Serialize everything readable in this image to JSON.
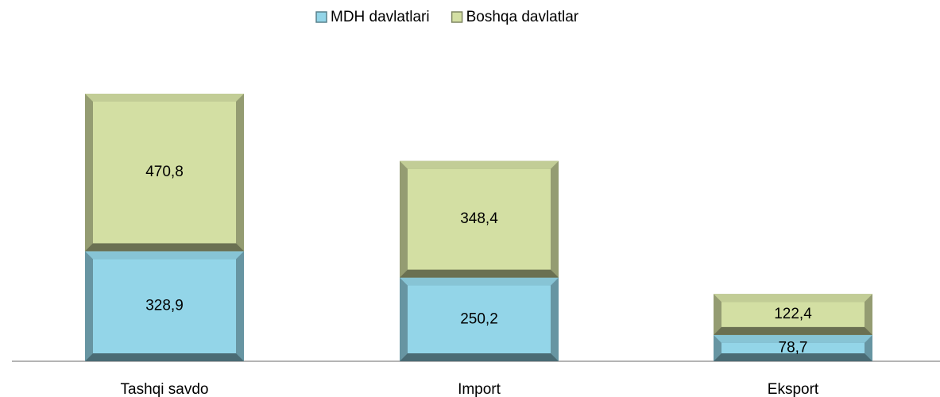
{
  "chart_data": {
    "type": "stacked_bar",
    "categories": [
      "Tashqi savdo",
      "Import",
      "Eksport"
    ],
    "series": [
      {
        "name": "MDH davlatlari",
        "color": "#93d5e8",
        "values": [
          328.9,
          250.2,
          78.7
        ],
        "value_labels": [
          "328,9",
          "250,2",
          "78,7"
        ]
      },
      {
        "name": "Boshqa davlatlar",
        "color": "#d3dfa3",
        "values": [
          470.8,
          348.4,
          122.4
        ],
        "value_labels": [
          "470,8",
          "348,4",
          "122,4"
        ]
      }
    ],
    "legend": "top"
  }
}
